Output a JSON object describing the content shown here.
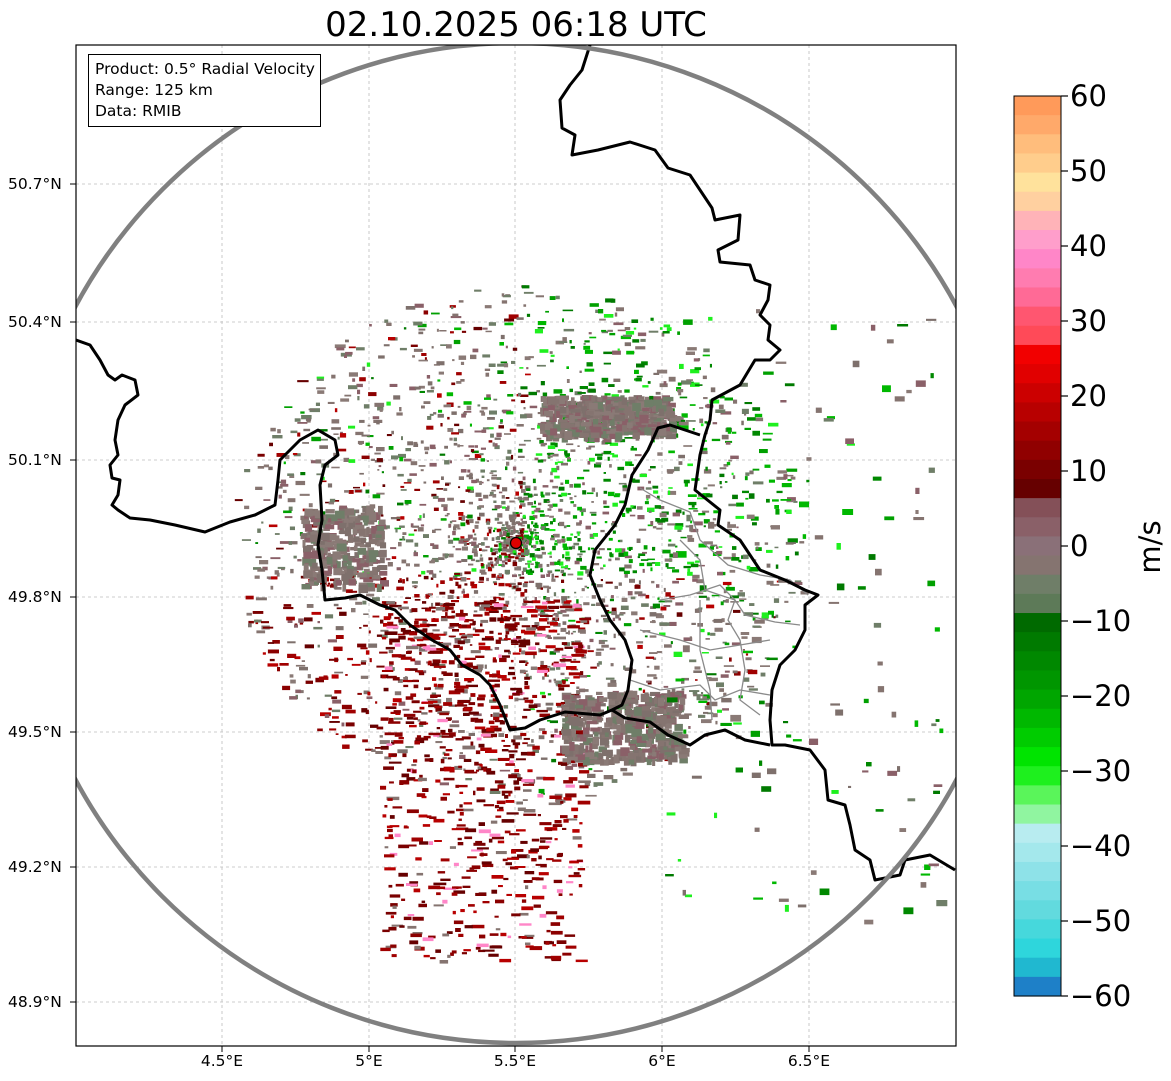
{
  "title": "02.10.2025 06:18 UTC",
  "info": {
    "product": "Product: 0.5° Radial Velocity",
    "range": "Range: 125 km",
    "data": "Data: RMIB"
  },
  "lat_labels": [
    "50.7°N",
    "50.4°N",
    "50.1°N",
    "49.8°N",
    "49.5°N",
    "49.2°N",
    "48.9°N"
  ],
  "lon_labels": [
    "4.5°E",
    "5°E",
    "5.5°E",
    "6°E",
    "6.5°E"
  ],
  "colorbar": {
    "label": "m/s",
    "min": -60,
    "max": 60,
    "ticks": [
      "60",
      "50",
      "40",
      "30",
      "20",
      "10",
      "0",
      "−10",
      "−20",
      "−30",
      "−40",
      "−50",
      "−60"
    ]
  },
  "colors": {
    "range_ring": "#808080",
    "border": "#000000",
    "grid": "#bdbdbd",
    "radar_site": "#e00000",
    "approaching": "#00a000",
    "receding": "#8b0000",
    "near_zero": "#857470"
  }
}
